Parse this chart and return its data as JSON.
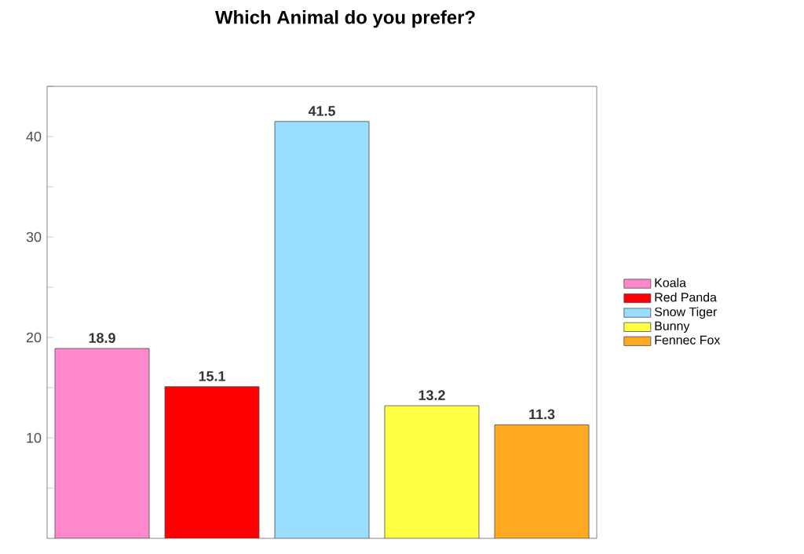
{
  "chart_data": {
    "type": "bar",
    "title": "Which Animal do you prefer?",
    "categories": [
      null
    ],
    "series": [
      {
        "name": "Koala",
        "color": "#ff88cc",
        "values": [
          18.9
        ]
      },
      {
        "name": "Red Panda",
        "color": "#ff0000",
        "values": [
          15.1
        ]
      },
      {
        "name": "Snow Tiger",
        "color": "#99ddff",
        "values": [
          41.5
        ]
      },
      {
        "name": "Bunny",
        "color": "#ffff44",
        "values": [
          13.2
        ]
      },
      {
        "name": "Fennec Fox",
        "color": "#ffaa22",
        "values": [
          11.3
        ]
      }
    ],
    "ylim": [
      0,
      45
    ],
    "yticks": [
      {
        "value": 5,
        "label": null
      },
      10,
      {
        "value": 15,
        "label": null
      },
      20,
      {
        "value": 25,
        "label": null
      },
      30,
      {
        "value": 35,
        "label": null
      },
      40,
      {
        "value": 45,
        "label": null
      }
    ],
    "tick_labels": "y",
    "data_labels": true,
    "legend": "right",
    "grid": false
  }
}
